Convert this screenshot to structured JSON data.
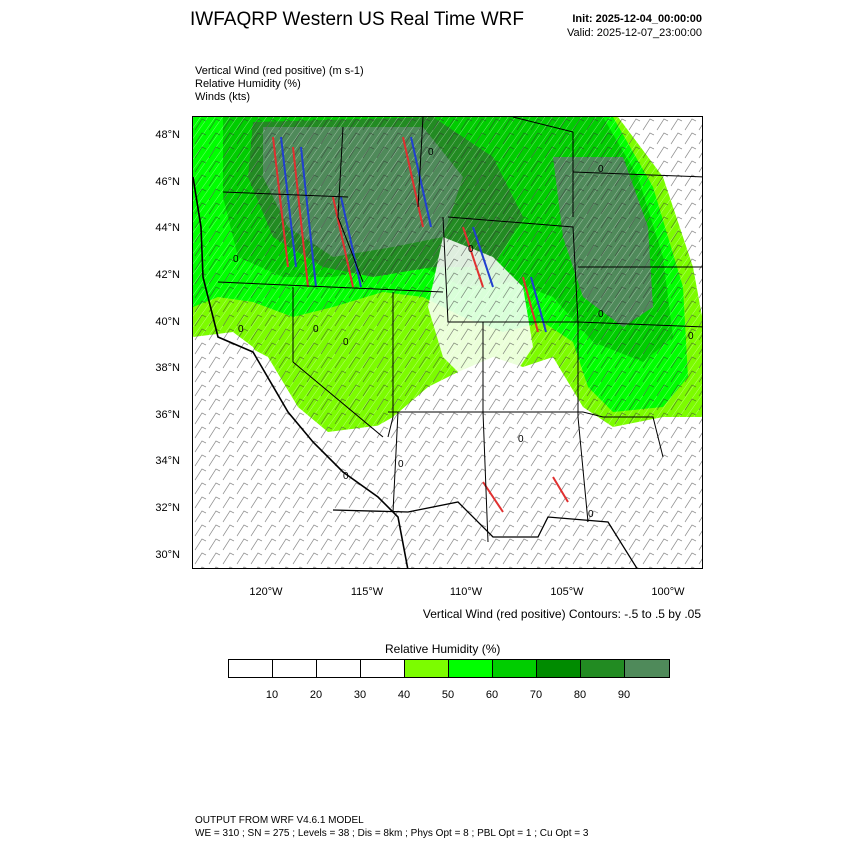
{
  "header": {
    "title": "IWFAQRP Western US Real Time WRF",
    "init": "Init: 2025-12-04_00:00:00",
    "valid": "Valid: 2025-12-07_23:00:00"
  },
  "fields": {
    "vertical_wind": "Vertical Wind (red positive)   (m s-1)",
    "relative_humidity": "Relative Humidity   (%)",
    "winds": "Winds   (kts)"
  },
  "map": {
    "lat_labels": [
      "48°N",
      "46°N",
      "44°N",
      "42°N",
      "40°N",
      "38°N",
      "36°N",
      "34°N",
      "32°N",
      "30°N"
    ],
    "lon_labels": [
      "120°W",
      "115°W",
      "110°W",
      "105°W",
      "100°W"
    ],
    "contour_note": "Vertical Wind (red positive) Contours: -.5 to .5 by .05",
    "contour_label": "0"
  },
  "colorbar": {
    "title": "Relative Humidity  (%)",
    "levels": [
      "10",
      "20",
      "30",
      "40",
      "50",
      "60",
      "70",
      "80",
      "90"
    ],
    "colors": [
      "#ffffff",
      "#ffffff",
      "#ffffff",
      "#ffffff",
      "#7cfc00",
      "#00ff00",
      "#00cd00",
      "#008b00",
      "#228b22",
      "#4f8a5a"
    ]
  },
  "footer": {
    "line1": "OUTPUT FROM WRF V4.6.1 MODEL",
    "line2": "WE = 310 ; SN = 275 ; Levels = 38 ; Dis = 8km ; Phys Opt = 8 ; PBL Opt = 1 ; Cu Opt = 3"
  }
}
